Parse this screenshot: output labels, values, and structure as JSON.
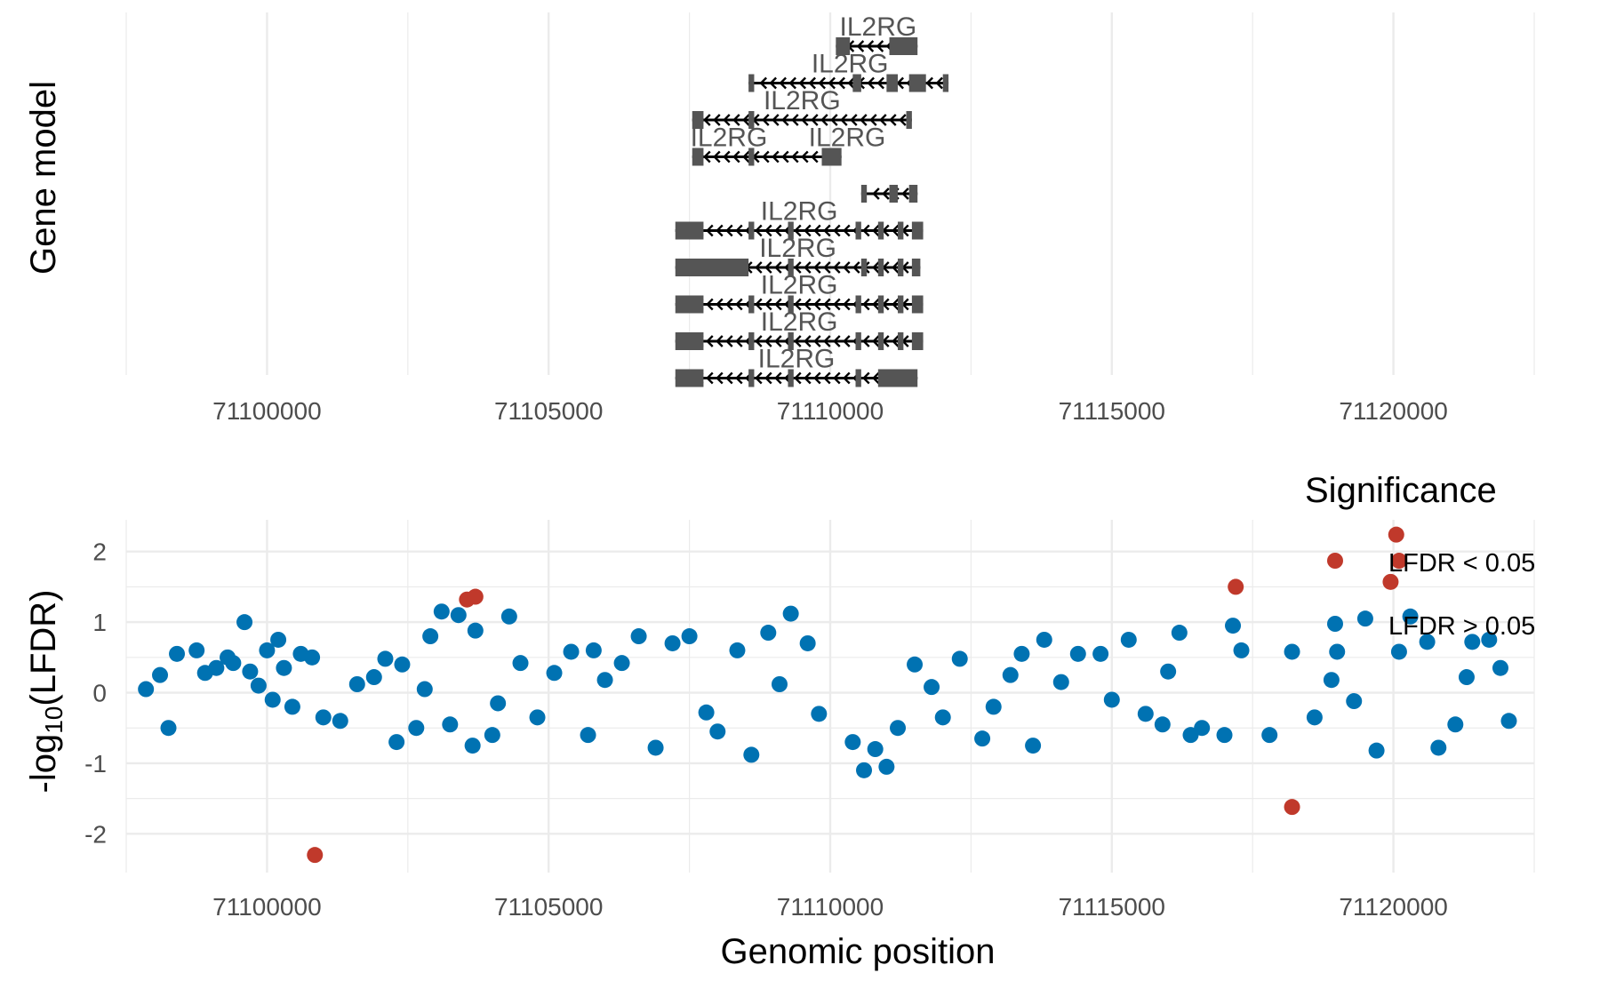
{
  "colors": {
    "significant": "#c0392b",
    "not_significant": "#0072b2",
    "gene_body": "#555555",
    "gene_line": "#000000",
    "grid": "#ebebeb"
  },
  "chart_data": [
    {
      "type": "gene-track",
      "ylabel": "Gene model",
      "xlim": [
        71097500,
        71122500
      ],
      "x_ticks": [
        "71100000",
        "71105000",
        "71110000",
        "71115000",
        "71120000"
      ],
      "x_tick_values": [
        71100000,
        71105000,
        71110000,
        71115000,
        71120000
      ],
      "grid": true,
      "transcripts": [
        {
          "label": "IL2RG",
          "start": 71110100,
          "end": 71111550,
          "exons": [
            [
              71110100,
              71110350
            ],
            [
              71111050,
              71111550
            ]
          ]
        },
        {
          "label": "IL2RG",
          "start": 71108550,
          "end": 71112100,
          "exons": [
            [
              71108550,
              71108650
            ],
            [
              71110400,
              71110550
            ],
            [
              71111000,
              71111200
            ],
            [
              71111400,
              71111700
            ],
            [
              71112000,
              71112100
            ]
          ]
        },
        {
          "label": "IL2RG",
          "start": 71107550,
          "end": 71111450,
          "exons": [
            [
              71107550,
              71107750
            ],
            [
              71108550,
              71108650
            ],
            [
              71111350,
              71111450
            ]
          ]
        },
        {
          "label": "IL2RG",
          "start": 71107550,
          "end": 71110200,
          "exons": [
            [
              71107550,
              71107750
            ],
            [
              71108550,
              71108650
            ],
            [
              71109850,
              71110200
            ]
          ]
        },
        {
          "label": "IL2RG",
          "start": 71110550,
          "end": 71111550,
          "exons": [
            [
              71110550,
              71110650
            ],
            [
              71111050,
              71111200
            ],
            [
              71111400,
              71111550
            ]
          ]
        },
        {
          "label": "IL2RG",
          "start": 71107250,
          "end": 71111650,
          "exons": [
            [
              71107250,
              71107750
            ],
            [
              71108550,
              71108650
            ],
            [
              71109250,
              71109350
            ],
            [
              71110450,
              71110550
            ],
            [
              71110850,
              71110950
            ],
            [
              71111200,
              71111300
            ],
            [
              71111450,
              71111650
            ]
          ]
        },
        {
          "label": "IL2RG",
          "start": 71107250,
          "end": 71111600,
          "exons": [
            [
              71107250,
              71108550
            ],
            [
              71109250,
              71109350
            ],
            [
              71110550,
              71110650
            ],
            [
              71110850,
              71110950
            ],
            [
              71111200,
              71111300
            ],
            [
              71111450,
              71111600
            ]
          ]
        },
        {
          "label": "IL2RG",
          "start": 71107250,
          "end": 71111650,
          "exons": [
            [
              71107250,
              71107750
            ],
            [
              71108550,
              71108650
            ],
            [
              71109250,
              71109350
            ],
            [
              71110450,
              71110550
            ],
            [
              71110850,
              71110950
            ],
            [
              71111200,
              71111300
            ],
            [
              71111450,
              71111650
            ]
          ]
        },
        {
          "label": "IL2RG",
          "start": 71107250,
          "end": 71111650,
          "exons": [
            [
              71107250,
              71107750
            ],
            [
              71108550,
              71108650
            ],
            [
              71109250,
              71109350
            ],
            [
              71110450,
              71110550
            ],
            [
              71110850,
              71110950
            ],
            [
              71111200,
              71111300
            ],
            [
              71111450,
              71111650
            ]
          ]
        },
        {
          "label": "IL2RG",
          "start": 71107250,
          "end": 71111550,
          "exons": [
            [
              71107250,
              71107750
            ],
            [
              71108550,
              71108650
            ],
            [
              71109250,
              71109350
            ],
            [
              71110450,
              71110550
            ],
            [
              71110850,
              71111300
            ],
            [
              71110950,
              71111550
            ]
          ]
        }
      ]
    },
    {
      "type": "scatter",
      "xlabel": "Genomic position",
      "ylabel": "-log10(LFDR)",
      "ylabel_parts": [
        "-log",
        "10",
        "(LFDR)"
      ],
      "xlim": [
        71097500,
        71122500
      ],
      "ylim": [
        -2.55,
        2.45
      ],
      "x_ticks": [
        "71100000",
        "71105000",
        "71110000",
        "71115000",
        "71120000"
      ],
      "x_tick_values": [
        71100000,
        71105000,
        71110000,
        71115000,
        71120000
      ],
      "y_ticks": [
        "-2",
        "-1",
        "0",
        "1",
        "2"
      ],
      "y_tick_values": [
        -2,
        -1,
        0,
        1,
        2
      ],
      "grid": true,
      "legend": {
        "title": "Significance",
        "position": "top-right",
        "entries": [
          {
            "label": "LFDR < 0.05",
            "series": "significant"
          },
          {
            "label": "LFDR > 0.05",
            "series": "not_significant"
          }
        ]
      },
      "series": [
        {
          "name": "LFDR < 0.05",
          "key": "significant",
          "x": [
            71100850,
            71103550,
            71103700,
            71117200,
            71118200,
            71119950,
            71120050,
            71120100
          ],
          "y": [
            -2.3,
            1.32,
            1.36,
            1.5,
            -1.62,
            1.57,
            2.24,
            1.87
          ]
        },
        {
          "name": "LFDR > 0.05",
          "key": "not_significant",
          "x": [
            71097850,
            71098250,
            71098400,
            71098750,
            71099100,
            71099300,
            71099600,
            71099700,
            71099850,
            71100000,
            71100200,
            71100300,
            71100450,
            71100600,
            71100800,
            71101000,
            71101300,
            71102100,
            71102300,
            71102400,
            71102650,
            71102900,
            71103100,
            71103250,
            71103400,
            71103650,
            71103700,
            71104000,
            71104300,
            71104500,
            71104800,
            71105400,
            71105700,
            71105800,
            71106300,
            71106600,
            71106900,
            71107200,
            71107500,
            71108000,
            71108350,
            71108600,
            71108900,
            71109300,
            71109600,
            71109800,
            71110400,
            71110600,
            71110800,
            71111000,
            71111200,
            71111500,
            71112000,
            71112300,
            71112700,
            71113200,
            71113400,
            71113600,
            71113800,
            71114400,
            71114800,
            71115300,
            71115600,
            71115900,
            71116200,
            71116400,
            71116600,
            71117000,
            71117150,
            71117300,
            71117800,
            71118200,
            71118600,
            71119000,
            71119500,
            71119700,
            71120100,
            71120300,
            71120600,
            71120800,
            71121100,
            71121400,
            71121700,
            71121900,
            71122050,
            71098100,
            71098900,
            71099400,
            71100100,
            71101600,
            71101900,
            71102800,
            71104100,
            71105100,
            71106000,
            71107800,
            71109100,
            71111800,
            71112900,
            71114100,
            71115000,
            71116000,
            71118900,
            71119300,
            71121300
          ],
          "y": [
            0.05,
            -0.5,
            0.55,
            0.6,
            0.35,
            0.5,
            1.0,
            0.3,
            0.1,
            0.6,
            0.75,
            0.35,
            -0.2,
            0.55,
            0.5,
            -0.35,
            -0.4,
            0.48,
            -0.7,
            0.4,
            -0.5,
            0.8,
            1.15,
            -0.45,
            1.1,
            -0.75,
            0.88,
            -0.6,
            1.08,
            0.42,
            -0.35,
            0.58,
            -0.6,
            0.6,
            0.42,
            0.8,
            -0.78,
            0.7,
            0.8,
            -0.55,
            0.6,
            -0.88,
            0.85,
            1.12,
            0.7,
            -0.3,
            -0.7,
            -1.1,
            -0.8,
            -1.05,
            -0.5,
            0.4,
            -0.35,
            0.48,
            -0.65,
            0.25,
            0.55,
            -0.75,
            0.75,
            0.55,
            0.55,
            0.75,
            -0.3,
            -0.45,
            0.85,
            -0.6,
            -0.5,
            -0.6,
            0.95,
            0.6,
            -0.6,
            0.58,
            -0.35,
            0.58,
            1.05,
            -0.82,
            0.58,
            1.08,
            0.72,
            -0.78,
            -0.45,
            0.72,
            0.75,
            0.35,
            -0.4,
            0.25,
            0.28,
            0.42,
            -0.1,
            0.12,
            0.22,
            0.05,
            -0.15,
            0.28,
            0.18,
            -0.28,
            0.12,
            0.08,
            -0.2,
            0.15,
            -0.1,
            0.3,
            0.18,
            -0.12,
            0.22
          ]
        }
      ]
    }
  ]
}
